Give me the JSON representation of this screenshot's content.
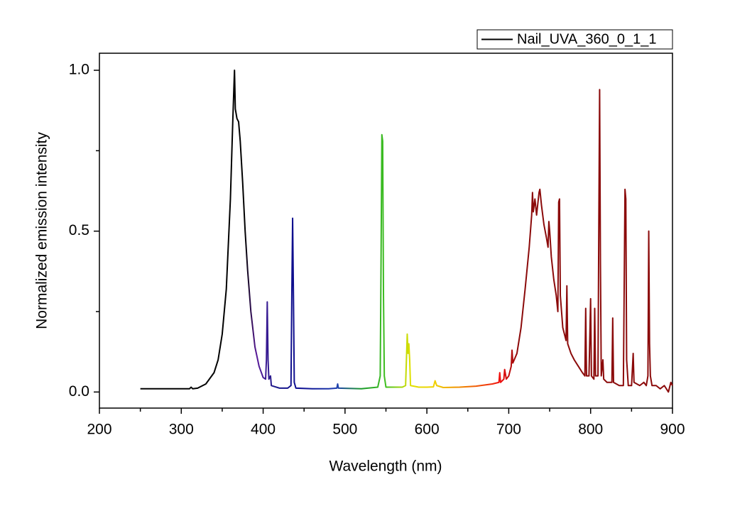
{
  "chart_data": {
    "type": "line",
    "xlabel": "Wavelength (nm)",
    "ylabel": "Normalized emission intensity",
    "xlim": [
      200,
      900
    ],
    "ylim": [
      -0.05,
      1.053
    ],
    "xticks": [
      200,
      300,
      400,
      500,
      600,
      700,
      800,
      900
    ],
    "xminor_ticks": [
      250,
      350,
      450,
      550,
      650,
      750,
      850
    ],
    "yticks": [
      {
        "value": 0,
        "label": "0.0"
      },
      {
        "value": 0.5,
        "label": "0.5"
      },
      {
        "value": 1,
        "label": "1.0"
      }
    ],
    "yminor_ticks": [
      0.25,
      0.75
    ],
    "legend": "top-right",
    "gradient": [
      {
        "x": 378,
        "color": "#000000"
      },
      {
        "x": 392,
        "color": "#5a1a9a"
      },
      {
        "x": 415,
        "color": "#1a1a8a"
      },
      {
        "x": 445,
        "color": "#0a0a90"
      },
      {
        "x": 490,
        "color": "#1f3fb0"
      },
      {
        "x": 520,
        "color": "#1a9a2a"
      },
      {
        "x": 550,
        "color": "#40c020"
      },
      {
        "x": 580,
        "color": "#e0e000"
      },
      {
        "x": 610,
        "color": "#f0d000"
      },
      {
        "x": 645,
        "color": "#f08000"
      },
      {
        "x": 690,
        "color": "#f01010"
      },
      {
        "x": 712,
        "color": "#8b0a0a"
      }
    ],
    "series": [
      {
        "name": "Nail_UVA_360_0_1_1",
        "color": "#000000",
        "x": [
          250,
          300,
          310,
          312,
          314,
          320,
          330,
          340,
          345,
          350,
          355,
          360,
          363,
          365,
          366,
          368,
          370,
          372,
          375,
          378,
          381,
          385,
          390,
          395,
          400,
          403,
          404,
          405,
          406,
          407,
          409,
          410,
          420,
          430,
          434,
          435,
          436,
          437,
          438,
          440,
          460,
          480,
          490,
          491,
          492,
          520,
          540,
          543,
          544,
          545,
          546,
          547,
          548,
          550,
          570,
          574,
          575,
          576,
          577,
          578,
          579,
          580,
          590,
          600,
          608,
          610,
          612,
          620,
          640,
          660,
          680,
          688,
          689,
          690,
          694,
          695,
          697,
          700,
          703,
          704,
          705,
          710,
          715,
          720,
          725,
          728,
          729,
          730,
          732,
          734,
          737,
          738,
          740,
          743,
          746,
          748,
          749,
          750,
          752,
          755,
          758,
          760,
          761,
          762,
          763,
          766,
          770,
          771,
          772,
          776,
          780,
          785,
          790,
          793,
          794,
          795,
          798,
          800,
          801,
          804,
          805,
          806,
          809,
          810,
          811,
          812,
          813,
          815,
          816,
          820,
          826,
          827,
          828,
          835,
          840,
          841,
          842,
          843,
          844,
          846,
          850,
          852,
          853,
          860,
          865,
          868,
          870,
          871,
          872,
          873,
          875,
          880,
          885,
          890,
          895,
          898,
          900
        ],
        "values": [
          0.01,
          0.01,
          0.01,
          0.015,
          0.01,
          0.012,
          0.025,
          0.06,
          0.1,
          0.18,
          0.32,
          0.6,
          0.85,
          1.0,
          0.88,
          0.85,
          0.84,
          0.78,
          0.65,
          0.5,
          0.38,
          0.25,
          0.14,
          0.08,
          0.045,
          0.04,
          0.1,
          0.28,
          0.1,
          0.04,
          0.05,
          0.02,
          0.012,
          0.012,
          0.02,
          0.3,
          0.54,
          0.3,
          0.03,
          0.012,
          0.01,
          0.01,
          0.012,
          0.025,
          0.012,
          0.01,
          0.015,
          0.05,
          0.4,
          0.8,
          0.78,
          0.3,
          0.05,
          0.015,
          0.015,
          0.02,
          0.1,
          0.18,
          0.12,
          0.15,
          0.1,
          0.02,
          0.015,
          0.015,
          0.016,
          0.035,
          0.02,
          0.014,
          0.015,
          0.018,
          0.025,
          0.03,
          0.06,
          0.03,
          0.04,
          0.07,
          0.04,
          0.05,
          0.08,
          0.13,
          0.09,
          0.12,
          0.2,
          0.32,
          0.45,
          0.55,
          0.62,
          0.56,
          0.6,
          0.55,
          0.62,
          0.63,
          0.58,
          0.52,
          0.48,
          0.45,
          0.53,
          0.5,
          0.42,
          0.35,
          0.3,
          0.25,
          0.59,
          0.6,
          0.3,
          0.2,
          0.16,
          0.33,
          0.15,
          0.12,
          0.1,
          0.08,
          0.06,
          0.05,
          0.26,
          0.05,
          0.05,
          0.29,
          0.05,
          0.04,
          0.26,
          0.05,
          0.05,
          0.51,
          0.94,
          0.4,
          0.05,
          0.1,
          0.04,
          0.03,
          0.03,
          0.23,
          0.03,
          0.02,
          0.02,
          0.32,
          0.63,
          0.6,
          0.1,
          0.02,
          0.02,
          0.12,
          0.03,
          0.02,
          0.03,
          0.02,
          0.05,
          0.5,
          0.15,
          0.05,
          0.02,
          0.02,
          0.01,
          0.02,
          0.0,
          0.03,
          0.02
        ]
      }
    ]
  }
}
